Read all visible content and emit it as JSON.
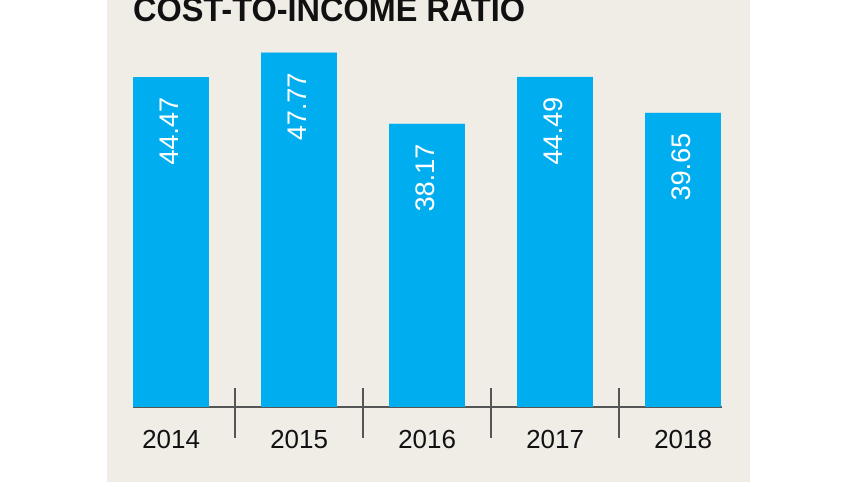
{
  "chart_data": {
    "type": "bar",
    "title": "COST-TO-INCOME RATIO",
    "categories": [
      "2014",
      "2015",
      "2016",
      "2017",
      "2018"
    ],
    "values": [
      44.47,
      47.77,
      38.17,
      44.49,
      39.65
    ],
    "color": "#00aeef",
    "ylim": [
      0,
      50
    ]
  }
}
